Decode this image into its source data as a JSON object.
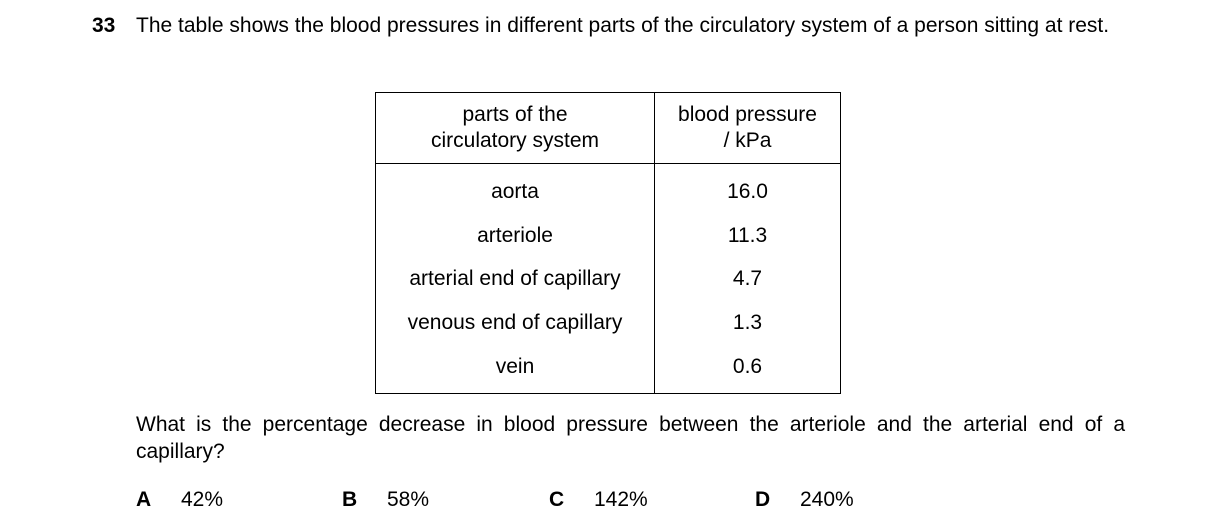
{
  "question": {
    "number": "33",
    "stem": "The table shows the blood pressures in different parts of the circulatory system of a person sitting at rest.",
    "prompt": "What is the percentage decrease in blood pressure between the arteriole and the arterial end of a capillary?"
  },
  "table": {
    "headers": {
      "part_line1": "parts of the",
      "part_line2": "circulatory system",
      "pressure_line1": "blood pressure",
      "pressure_line2": "/ kPa"
    },
    "rows": [
      {
        "part": "aorta",
        "pressure": "16.0"
      },
      {
        "part": "arteriole",
        "pressure": "11.3"
      },
      {
        "part": "arterial end of capillary",
        "pressure": "4.7"
      },
      {
        "part": "venous end of capillary",
        "pressure": "1.3"
      },
      {
        "part": "vein",
        "pressure": "0.6"
      }
    ]
  },
  "options": [
    {
      "letter": "A",
      "value": "42%"
    },
    {
      "letter": "B",
      "value": "58%"
    },
    {
      "letter": "C",
      "value": "142%"
    },
    {
      "letter": "D",
      "value": "240%"
    }
  ]
}
